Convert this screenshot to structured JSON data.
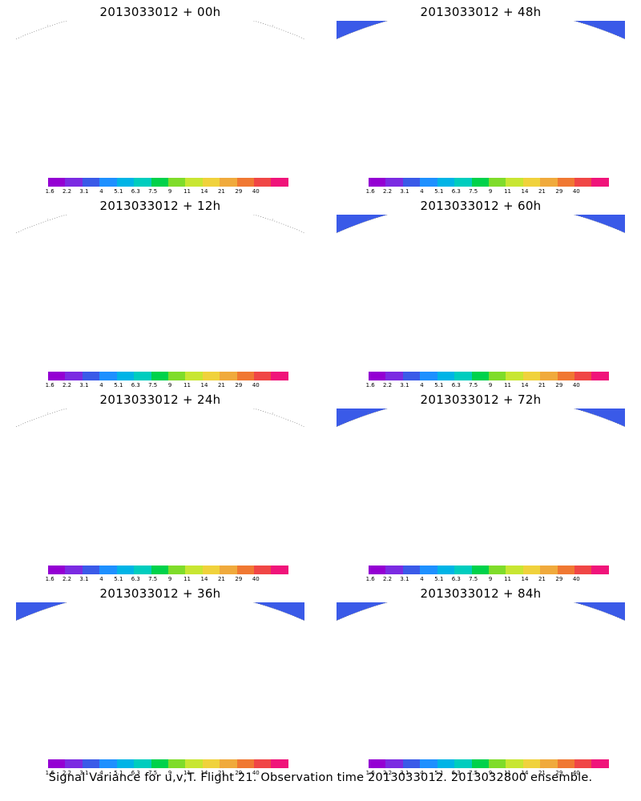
{
  "panels": [
    {
      "title": "2013033012 + 00h"
    },
    {
      "title": "2013033012 + 48h"
    },
    {
      "title": "2013033012 + 12h"
    },
    {
      "title": "2013033012 + 60h"
    },
    {
      "title": "2013033012 + 24h"
    },
    {
      "title": "2013033012 + 72h"
    },
    {
      "title": "2013033012 + 36h"
    },
    {
      "title": "2013033012 + 84h"
    }
  ],
  "colorbar": {
    "labels": [
      "1.6",
      "2.2",
      "3.1",
      "4",
      "5.1",
      "6.3",
      "7.5",
      "9",
      "11",
      "14",
      "21",
      "29",
      "40"
    ],
    "colors": [
      "#9400d3",
      "#7b2be2",
      "#3a5ae8",
      "#1e90ff",
      "#00b4e6",
      "#00cdbe",
      "#00d24b",
      "#7fdc2a",
      "#c8e632",
      "#f0d23c",
      "#f0aa3c",
      "#f07832",
      "#f04646",
      "#f0147a"
    ]
  },
  "footer": "Signal Variance for u,v,T. Flight 21. Observation time 2013033012. 2013032800 ensemble."
}
